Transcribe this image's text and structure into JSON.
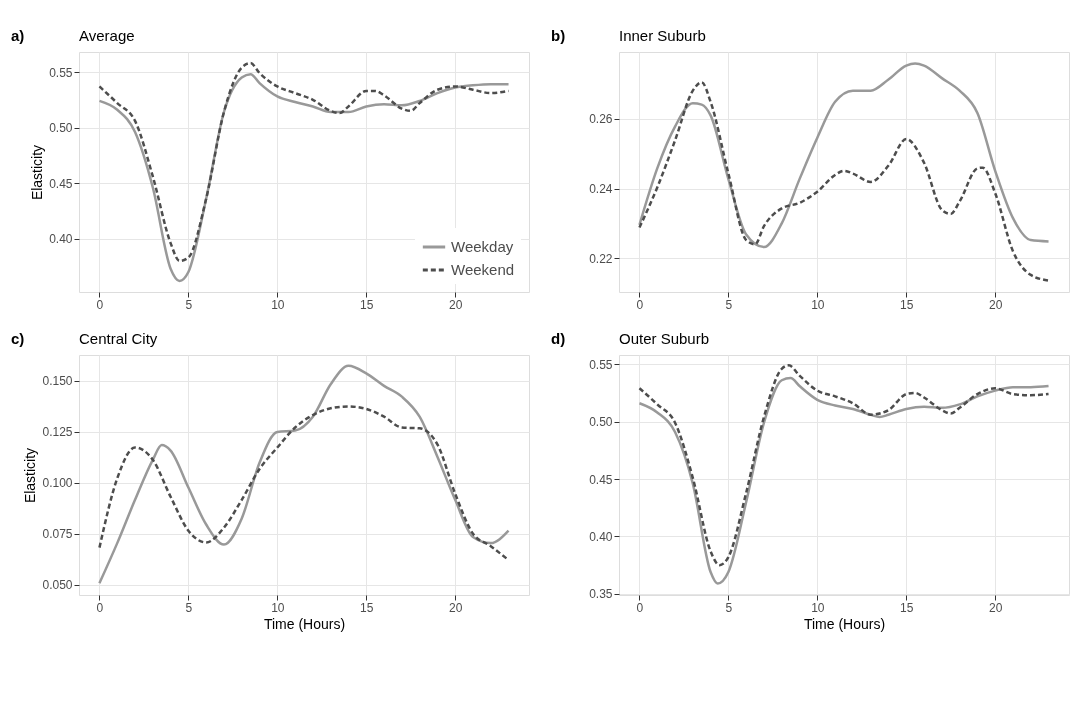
{
  "chart_data": [
    {
      "type": "line",
      "title": "Average",
      "annotations": [
        "a)"
      ],
      "ylabel": "Elasticity",
      "xlim": [
        -1.15,
        24.15
      ],
      "xticks": [
        0,
        5,
        10,
        15,
        20
      ],
      "ylim": [
        0.352,
        0.568
      ],
      "yticks": [
        {
          "value": 0.4,
          "label": "0.40"
        },
        0.45,
        {
          "value": 0.5,
          "label": "0.50"
        },
        0.55
      ],
      "grid": true,
      "legend": "bottom right",
      "series": [
        {
          "name": "Weekday",
          "color": "#999999",
          "line_style": "solid",
          "x": [
            0,
            1,
            2,
            3,
            4,
            4.5,
            5,
            6,
            7,
            8,
            8.5,
            9,
            10,
            11,
            12,
            13,
            14,
            15,
            16,
            17,
            18,
            19,
            20,
            21,
            22,
            23
          ],
          "values": [
            0.524,
            0.516,
            0.496,
            0.446,
            0.373,
            0.362,
            0.37,
            0.436,
            0.514,
            0.545,
            0.548,
            0.54,
            0.528,
            0.523,
            0.519,
            0.514,
            0.514,
            0.519,
            0.521,
            0.52,
            0.524,
            0.531,
            0.536,
            0.538,
            0.539,
            0.539
          ]
        },
        {
          "name": "Weekend",
          "color": "#4d4d4d",
          "line_style": "dashed",
          "x": [
            0,
            1,
            2,
            3,
            4,
            4.5,
            5,
            6,
            7,
            8,
            8.5,
            9,
            10,
            11,
            12,
            13,
            13.5,
            14,
            15,
            15.5,
            16,
            17,
            17.5,
            18,
            19,
            20,
            21,
            22,
            23
          ],
          "values": [
            0.537,
            0.522,
            0.506,
            0.456,
            0.396,
            0.38,
            0.383,
            0.436,
            0.514,
            0.554,
            0.558,
            0.549,
            0.537,
            0.531,
            0.525,
            0.515,
            0.513,
            0.519,
            0.533,
            0.533,
            0.529,
            0.517,
            0.515,
            0.522,
            0.534,
            0.537,
            0.534,
            0.531,
            0.533
          ]
        }
      ]
    },
    {
      "type": "line",
      "title": "Inner Suburb",
      "annotations": [
        "b)"
      ],
      "xlim": [
        -1.15,
        24.15
      ],
      "xticks": [
        0,
        5,
        10,
        15,
        20
      ],
      "ylim": [
        0.2103,
        0.2792
      ],
      "yticks": [
        0.22,
        0.24,
        0.26
      ],
      "grid": true,
      "series": [
        {
          "color": "#999999",
          "line_style": "solid",
          "x": [
            0,
            1,
            2,
            3,
            3.5,
            4,
            5,
            6,
            7,
            8,
            9,
            10,
            11,
            12,
            13,
            14,
            15,
            15.5,
            16,
            17,
            18,
            19,
            20,
            21,
            22,
            23
          ],
          "values": [
            0.2296,
            0.2458,
            0.2578,
            0.2645,
            0.2641,
            0.261,
            0.2427,
            0.2268,
            0.2232,
            0.23,
            0.2427,
            0.2546,
            0.2649,
            0.2681,
            0.2681,
            0.2713,
            0.2753,
            0.2759,
            0.2753,
            0.2717,
            0.2681,
            0.2617,
            0.2451,
            0.2315,
            0.2252,
            0.2248
          ]
        },
        {
          "color": "#4d4d4d",
          "line_style": "dashed",
          "x": [
            0,
            1,
            2,
            3,
            3.5,
            4,
            5,
            6,
            6.5,
            7,
            8,
            9,
            10,
            11,
            11.5,
            12,
            13,
            14,
            15,
            16,
            17,
            17.5,
            18,
            19,
            19.3,
            20,
            21,
            22,
            23
          ],
          "values": [
            0.2288,
            0.2403,
            0.2538,
            0.2681,
            0.2705,
            0.2649,
            0.2443,
            0.2252,
            0.224,
            0.2292,
            0.2343,
            0.2359,
            0.2391,
            0.2439,
            0.2451,
            0.2443,
            0.2419,
            0.2466,
            0.2542,
            0.2474,
            0.2339,
            0.2327,
            0.2363,
            0.2458,
            0.246,
            0.2387,
            0.222,
            0.2152,
            0.2136
          ]
        }
      ]
    },
    {
      "type": "line",
      "title": "Central City",
      "annotations": [
        "c)"
      ],
      "xlabel": "Time (Hours)",
      "ylabel": "Elasticity",
      "xlim": [
        -1.15,
        24.15
      ],
      "xticks": [
        0,
        5,
        10,
        15,
        20
      ],
      "ylim": [
        0.045,
        0.1625
      ],
      "yticks": [
        {
          "value": 0.05,
          "label": "0.050"
        },
        0.075,
        {
          "value": 0.1,
          "label": "0.100"
        },
        0.125,
        {
          "value": 0.15,
          "label": "0.150"
        }
      ],
      "grid": true,
      "series": [
        {
          "color": "#999999",
          "line_style": "solid",
          "x": [
            0,
            1,
            2,
            3,
            3.5,
            4,
            5,
            6,
            7,
            8,
            9,
            10,
            11,
            12,
            13,
            14,
            15,
            16,
            17,
            18,
            19,
            20,
            21,
            22,
            23
          ],
          "values": [
            0.0508,
            0.0704,
            0.0916,
            0.1112,
            0.1184,
            0.1157,
            0.0976,
            0.0795,
            0.0697,
            0.0825,
            0.1097,
            0.1248,
            0.1255,
            0.1323,
            0.1482,
            0.1572,
            0.1535,
            0.1474,
            0.1421,
            0.1323,
            0.1127,
            0.0916,
            0.0734,
            0.0704,
            0.0765
          ]
        },
        {
          "color": "#4d4d4d",
          "line_style": "dashed",
          "x": [
            0,
            1,
            2,
            3,
            4,
            5,
            6,
            7,
            8,
            9,
            10,
            11,
            12,
            13,
            14,
            15,
            16,
            17,
            18,
            19,
            20,
            21,
            22,
            23
          ],
          "values": [
            0.0682,
            0.1021,
            0.1172,
            0.1112,
            0.0931,
            0.0765,
            0.0707,
            0.078,
            0.0916,
            0.1067,
            0.1172,
            0.127,
            0.1331,
            0.1364,
            0.1373,
            0.1361,
            0.1323,
            0.127,
            0.1266,
            0.1187,
            0.0946,
            0.075,
            0.0689,
            0.0621
          ]
        }
      ]
    },
    {
      "type": "line",
      "title": "Outer Suburb",
      "annotations": [
        "d)"
      ],
      "xlabel": "Time (Hours)",
      "xlim": [
        -1.15,
        24.15
      ],
      "xticks": [
        0,
        5,
        10,
        15,
        20
      ],
      "ylim": [
        0.349,
        0.558
      ],
      "yticks": [
        0.35,
        {
          "value": 0.4,
          "label": "0.40"
        },
        0.45,
        {
          "value": 0.5,
          "label": "0.50"
        },
        0.55
      ],
      "grid": true,
      "series": [
        {
          "color": "#999999",
          "line_style": "solid",
          "x": [
            0,
            1,
            2,
            3,
            4,
            4.4,
            5,
            6,
            7,
            8,
            8.5,
            9,
            10,
            11,
            12,
            13,
            13.5,
            14,
            15,
            16,
            17,
            18,
            19,
            20,
            21,
            22,
            23
          ],
          "values": [
            0.516,
            0.508,
            0.491,
            0.446,
            0.369,
            0.359,
            0.369,
            0.43,
            0.499,
            0.536,
            0.538,
            0.531,
            0.519,
            0.514,
            0.511,
            0.506,
            0.504,
            0.506,
            0.511,
            0.513,
            0.512,
            0.515,
            0.522,
            0.527,
            0.53,
            0.53,
            0.531
          ]
        },
        {
          "color": "#4d4d4d",
          "line_style": "dashed",
          "x": [
            0,
            1,
            2,
            3,
            4,
            4.5,
            5,
            6,
            7,
            8,
            8.4,
            9,
            10,
            11,
            12,
            13,
            14,
            15,
            15.5,
            16,
            17,
            17.5,
            18,
            19,
            20,
            21,
            22,
            23
          ],
          "values": [
            0.529,
            0.515,
            0.499,
            0.451,
            0.387,
            0.375,
            0.382,
            0.438,
            0.504,
            0.546,
            0.549,
            0.54,
            0.527,
            0.522,
            0.516,
            0.506,
            0.51,
            0.524,
            0.525,
            0.521,
            0.51,
            0.507,
            0.512,
            0.524,
            0.529,
            0.524,
            0.523,
            0.524
          ]
        }
      ]
    }
  ]
}
